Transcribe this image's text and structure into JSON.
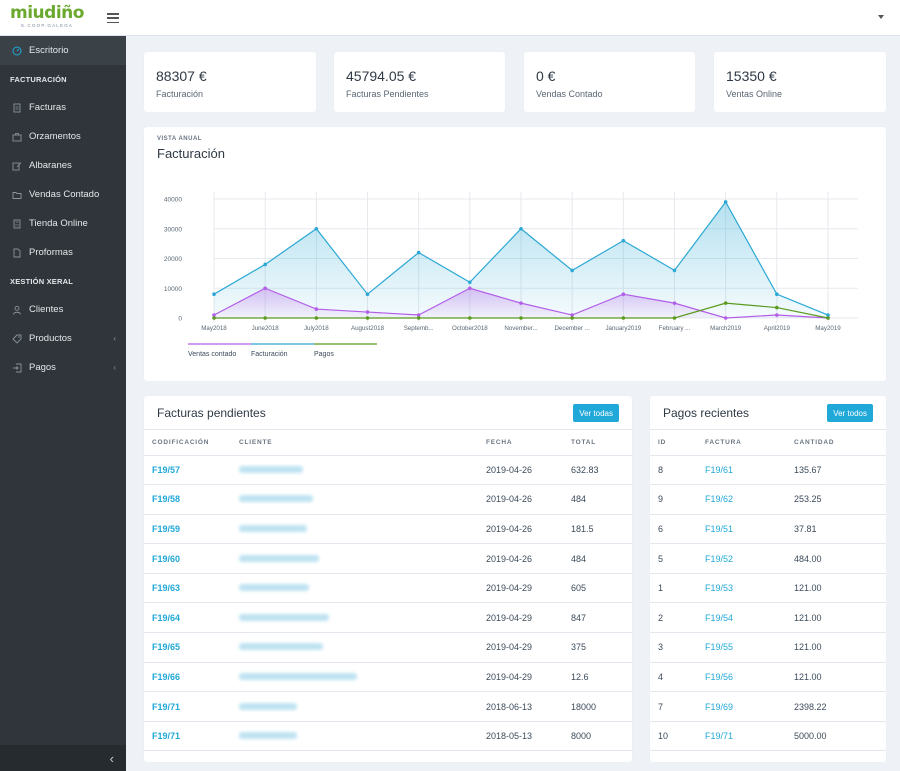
{
  "header": {
    "logo_text": "miudiño",
    "logo_sub": "S.COOP.GALEGA"
  },
  "sidebar": {
    "items": [
      {
        "type": "item",
        "label": "Escritorio",
        "icon": "speedometer-icon",
        "active": true
      },
      {
        "type": "title",
        "label": "FACTURACIÓN"
      },
      {
        "type": "item",
        "label": "Facturas",
        "icon": "document-icon"
      },
      {
        "type": "item",
        "label": "Orzamentos",
        "icon": "briefcase-icon"
      },
      {
        "type": "item",
        "label": "Albaranes",
        "icon": "edit-icon"
      },
      {
        "type": "item",
        "label": "Vendas Contado",
        "icon": "folder-icon"
      },
      {
        "type": "item",
        "label": "Tienda Online",
        "icon": "calculator-icon"
      },
      {
        "type": "item",
        "label": "Proformas",
        "icon": "file-icon"
      },
      {
        "type": "title",
        "label": "XESTIÓN XERAL"
      },
      {
        "type": "item",
        "label": "Clientes",
        "icon": "user-icon"
      },
      {
        "type": "item",
        "label": "Productos",
        "icon": "tag-icon",
        "chevron": true
      },
      {
        "type": "item",
        "label": "Pagos",
        "icon": "login-icon",
        "chevron": true
      }
    ],
    "toggle": "‹"
  },
  "stats": [
    {
      "value": "88307 €",
      "label": "Facturación"
    },
    {
      "value": "45794.05 €",
      "label": "Facturas Pendientes"
    },
    {
      "value": "0 €",
      "label": "Vendas Contado"
    },
    {
      "value": "15350 €",
      "label": "Ventas Online"
    }
  ],
  "chart_section": {
    "subtitle": "VISTA ANUAL",
    "title": "Facturación"
  },
  "chart_data": {
    "type": "line",
    "categories": [
      "May2018",
      "June2018",
      "July2018",
      "August2018",
      "Septemb...",
      "October2018",
      "November...",
      "December ...",
      "January2019",
      "February ...",
      "March2019",
      "April2019",
      "May2019"
    ],
    "series": [
      {
        "name": "Ventas contado",
        "color": "#b35ee8",
        "values": [
          1000,
          10000,
          3000,
          2000,
          1000,
          10000,
          5000,
          1000,
          8000,
          5000,
          0,
          1000,
          0
        ]
      },
      {
        "name": "Facturación",
        "color": "#2ba8d4",
        "values": [
          8000,
          18000,
          30000,
          8000,
          22000,
          12000,
          30000,
          16000,
          26000,
          16000,
          39000,
          8000,
          1000
        ]
      },
      {
        "name": "Pagos",
        "color": "#5b9a1e",
        "values": [
          0,
          0,
          0,
          0,
          0,
          0,
          0,
          0,
          0,
          0,
          5000,
          3500,
          0
        ]
      }
    ],
    "yticks": [
      0,
      10000,
      20000,
      30000,
      40000
    ],
    "ylim": [
      0,
      40000
    ],
    "grid": true,
    "legend": "bottom-left"
  },
  "pending": {
    "title": "Facturas pendientes",
    "button": "Ver todas",
    "columns": [
      "CODIFICACIÓN",
      "CLIENTE",
      "FECHA",
      "TOTAL"
    ],
    "rows": [
      {
        "code": "F19/57",
        "date": "2019-04-26",
        "total": "632.83"
      },
      {
        "code": "F19/58",
        "date": "2019-04-26",
        "total": "484"
      },
      {
        "code": "F19/59",
        "date": "2019-04-26",
        "total": "181.5"
      },
      {
        "code": "F19/60",
        "date": "2019-04-26",
        "total": "484"
      },
      {
        "code": "F19/63",
        "date": "2019-04-29",
        "total": "605"
      },
      {
        "code": "F19/64",
        "date": "2019-04-29",
        "total": "847"
      },
      {
        "code": "F19/65",
        "date": "2019-04-29",
        "total": "375"
      },
      {
        "code": "F19/66",
        "date": "2019-04-29",
        "total": "12.6"
      },
      {
        "code": "F19/71",
        "date": "2018-06-13",
        "total": "18000"
      },
      {
        "code": "F19/71",
        "date": "2018-05-13",
        "total": "8000"
      }
    ]
  },
  "payments": {
    "title": "Pagos recientes",
    "button": "Ver todos",
    "columns": [
      "ID",
      "FACTURA",
      "CANTIDAD"
    ],
    "rows": [
      {
        "id": "8",
        "invoice": "F19/61",
        "amount": "135.67"
      },
      {
        "id": "9",
        "invoice": "F19/62",
        "amount": "253.25"
      },
      {
        "id": "6",
        "invoice": "F19/51",
        "amount": "37.81"
      },
      {
        "id": "5",
        "invoice": "F19/52",
        "amount": "484.00"
      },
      {
        "id": "1",
        "invoice": "F19/53",
        "amount": "121.00"
      },
      {
        "id": "2",
        "invoice": "F19/54",
        "amount": "121.00"
      },
      {
        "id": "3",
        "invoice": "F19/55",
        "amount": "121.00"
      },
      {
        "id": "4",
        "invoice": "F19/56",
        "amount": "121.00"
      },
      {
        "id": "7",
        "invoice": "F19/69",
        "amount": "2398.22"
      },
      {
        "id": "10",
        "invoice": "F19/71",
        "amount": "5000.00"
      }
    ]
  }
}
